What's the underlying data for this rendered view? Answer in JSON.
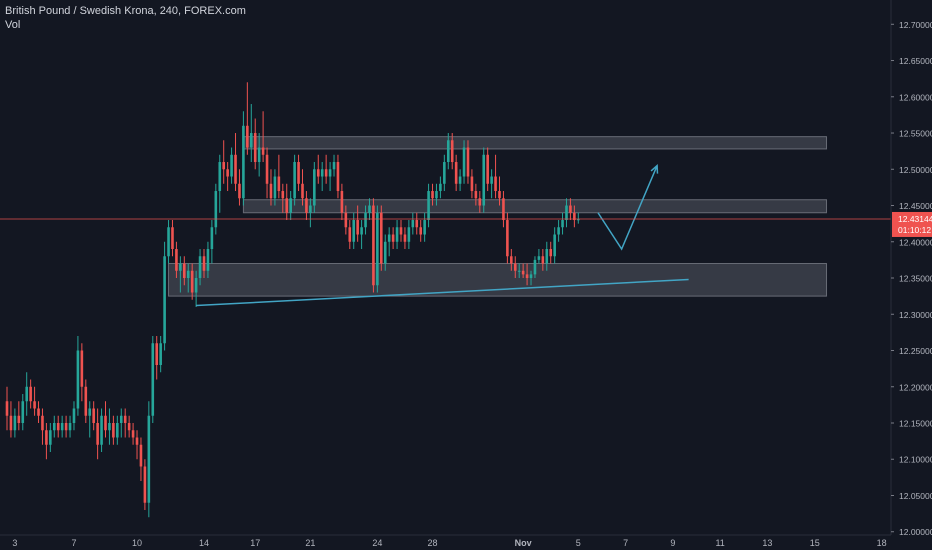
{
  "header": {
    "symbol_line": "British Pound / Swedish Krona, 240, FOREX.com",
    "volume_label": "Vol"
  },
  "price_badge": {
    "price": "12.43144",
    "countdown": "01:10:12"
  },
  "colors": {
    "background": "#131722",
    "up": "#26a69a",
    "down": "#ef5350",
    "grid": "#1e222d",
    "axis_text": "#b2b5be",
    "zone_fill": "#787b86",
    "trend_line": "#42a5c5",
    "price_line": "#ef5350"
  },
  "chart_data": {
    "type": "candlestick",
    "title": "British Pound / Swedish Krona, 240, FOREX.com",
    "xlabel": "",
    "ylabel": "",
    "ylim": [
      11.9955,
      12.7335
    ],
    "grid": false,
    "y_ticks": [
      "12.70000",
      "12.65000",
      "12.60000",
      "12.55000",
      "12.50000",
      "12.45000",
      "12.40000",
      "12.35000",
      "12.30000",
      "12.25000",
      "12.20000",
      "12.15000",
      "12.10000",
      "12.05000",
      "12.00000"
    ],
    "x_ticks": [
      {
        "label": "3",
        "bar": 2
      },
      {
        "label": "7",
        "bar": 17
      },
      {
        "label": "10",
        "bar": 33
      },
      {
        "label": "14",
        "bar": 50
      },
      {
        "label": "17",
        "bar": 63
      },
      {
        "label": "21",
        "bar": 77
      },
      {
        "label": "24",
        "bar": 94
      },
      {
        "label": "28",
        "bar": 108
      },
      {
        "label": "Nov",
        "bar": 131
      },
      {
        "label": "5",
        "bar": 145
      },
      {
        "label": "7",
        "bar": 157
      },
      {
        "label": "9",
        "bar": 169
      },
      {
        "label": "11",
        "bar": 181
      },
      {
        "label": "13",
        "bar": 193
      },
      {
        "label": "15",
        "bar": 205
      },
      {
        "label": "18",
        "bar": 222
      }
    ],
    "candles": [
      [
        12.18,
        12.2,
        12.14,
        12.16
      ],
      [
        12.16,
        12.18,
        12.13,
        12.14
      ],
      [
        12.14,
        12.17,
        12.13,
        12.16
      ],
      [
        12.16,
        12.18,
        12.14,
        12.15
      ],
      [
        12.15,
        12.19,
        12.14,
        12.18
      ],
      [
        12.18,
        12.22,
        12.16,
        12.2
      ],
      [
        12.2,
        12.21,
        12.17,
        12.18
      ],
      [
        12.18,
        12.2,
        12.16,
        12.17
      ],
      [
        12.17,
        12.18,
        12.15,
        12.16
      ],
      [
        12.16,
        12.17,
        12.12,
        12.14
      ],
      [
        12.14,
        12.15,
        12.1,
        12.12
      ],
      [
        12.12,
        12.15,
        12.11,
        12.14
      ],
      [
        12.14,
        12.16,
        12.13,
        12.15
      ],
      [
        12.15,
        12.16,
        12.13,
        12.14
      ],
      [
        12.14,
        12.16,
        12.13,
        12.15
      ],
      [
        12.15,
        12.16,
        12.13,
        12.14
      ],
      [
        12.14,
        12.16,
        12.13,
        12.15
      ],
      [
        12.15,
        12.18,
        12.14,
        12.17
      ],
      [
        12.17,
        12.27,
        12.16,
        12.25
      ],
      [
        12.25,
        12.26,
        12.18,
        12.2
      ],
      [
        12.2,
        12.21,
        12.15,
        12.16
      ],
      [
        12.16,
        12.18,
        12.13,
        12.17
      ],
      [
        12.17,
        12.18,
        12.14,
        12.15
      ],
      [
        12.15,
        12.17,
        12.1,
        12.12
      ],
      [
        12.12,
        12.17,
        12.11,
        12.16
      ],
      [
        12.16,
        12.18,
        12.13,
        12.14
      ],
      [
        12.14,
        12.17,
        12.12,
        12.15
      ],
      [
        12.15,
        12.16,
        12.12,
        12.13
      ],
      [
        12.13,
        12.16,
        12.12,
        12.15
      ],
      [
        12.15,
        12.17,
        12.13,
        12.16
      ],
      [
        12.16,
        12.17,
        12.13,
        12.15
      ],
      [
        12.15,
        12.16,
        12.13,
        12.14
      ],
      [
        12.14,
        12.15,
        12.12,
        12.13
      ],
      [
        12.13,
        12.14,
        12.1,
        12.12
      ],
      [
        12.12,
        12.13,
        12.07,
        12.09
      ],
      [
        12.09,
        12.1,
        12.03,
        12.04
      ],
      [
        12.04,
        12.18,
        12.02,
        12.16
      ],
      [
        12.16,
        12.27,
        12.15,
        12.26
      ],
      [
        12.26,
        12.27,
        12.21,
        12.23
      ],
      [
        12.23,
        12.27,
        12.22,
        12.26
      ],
      [
        12.26,
        12.4,
        12.25,
        12.38
      ],
      [
        12.38,
        12.43,
        12.37,
        12.42
      ],
      [
        12.42,
        12.43,
        12.38,
        12.39
      ],
      [
        12.39,
        12.4,
        12.35,
        12.36
      ],
      [
        12.36,
        12.38,
        12.33,
        12.37
      ],
      [
        12.37,
        12.38,
        12.34,
        12.35
      ],
      [
        12.35,
        12.37,
        12.33,
        12.36
      ],
      [
        12.36,
        12.37,
        12.32,
        12.33
      ],
      [
        12.33,
        12.36,
        12.31,
        12.35
      ],
      [
        12.35,
        12.39,
        12.34,
        12.38
      ],
      [
        12.38,
        12.39,
        12.35,
        12.36
      ],
      [
        12.36,
        12.4,
        12.35,
        12.39
      ],
      [
        12.39,
        12.43,
        12.37,
        12.42
      ],
      [
        12.42,
        12.48,
        12.41,
        12.47
      ],
      [
        12.47,
        12.52,
        12.44,
        12.51
      ],
      [
        12.51,
        12.54,
        12.48,
        12.5
      ],
      [
        12.5,
        12.51,
        12.47,
        12.49
      ],
      [
        12.49,
        12.53,
        12.48,
        12.52
      ],
      [
        12.52,
        12.55,
        12.47,
        12.48
      ],
      [
        12.48,
        12.5,
        12.45,
        12.46
      ],
      [
        12.46,
        12.58,
        12.45,
        12.56
      ],
      [
        12.56,
        12.62,
        12.52,
        12.53
      ],
      [
        12.53,
        12.59,
        12.51,
        12.55
      ],
      [
        12.55,
        12.57,
        12.5,
        12.51
      ],
      [
        12.51,
        12.55,
        12.49,
        12.53
      ],
      [
        12.53,
        12.58,
        12.51,
        12.52
      ],
      [
        12.52,
        12.53,
        12.46,
        12.48
      ],
      [
        12.48,
        12.5,
        12.45,
        12.46
      ],
      [
        12.46,
        12.5,
        12.45,
        12.49
      ],
      [
        12.49,
        12.52,
        12.46,
        12.47
      ],
      [
        12.47,
        12.48,
        12.44,
        12.46
      ],
      [
        12.46,
        12.48,
        12.43,
        12.44
      ],
      [
        12.44,
        12.47,
        12.43,
        12.46
      ],
      [
        12.46,
        12.52,
        12.45,
        12.51
      ],
      [
        12.51,
        12.52,
        12.47,
        12.48
      ],
      [
        12.48,
        12.5,
        12.45,
        12.46
      ],
      [
        12.46,
        12.47,
        12.43,
        12.44
      ],
      [
        12.44,
        12.46,
        12.42,
        12.45
      ],
      [
        12.45,
        12.51,
        12.44,
        12.5
      ],
      [
        12.5,
        12.52,
        12.48,
        12.49
      ],
      [
        12.49,
        12.51,
        12.47,
        12.5
      ],
      [
        12.5,
        12.52,
        12.48,
        12.49
      ],
      [
        12.49,
        12.51,
        12.47,
        12.5
      ],
      [
        12.5,
        12.52,
        12.49,
        12.51
      ],
      [
        12.51,
        12.52,
        12.46,
        12.47
      ],
      [
        12.47,
        12.48,
        12.43,
        12.44
      ],
      [
        12.44,
        12.45,
        12.41,
        12.42
      ],
      [
        12.42,
        12.43,
        12.39,
        12.4
      ],
      [
        12.4,
        12.44,
        12.39,
        12.43
      ],
      [
        12.43,
        12.45,
        12.4,
        12.41
      ],
      [
        12.41,
        12.43,
        12.39,
        12.42
      ],
      [
        12.42,
        12.45,
        12.41,
        12.44
      ],
      [
        12.44,
        12.46,
        12.43,
        12.45
      ],
      [
        12.45,
        12.46,
        12.33,
        12.34
      ],
      [
        12.34,
        12.45,
        12.33,
        12.44
      ],
      [
        12.44,
        12.45,
        12.36,
        12.37
      ],
      [
        12.37,
        12.41,
        12.36,
        12.4
      ],
      [
        12.4,
        12.42,
        12.38,
        12.41
      ],
      [
        12.41,
        12.42,
        12.39,
        12.4
      ],
      [
        12.4,
        12.43,
        12.39,
        12.42
      ],
      [
        12.42,
        12.43,
        12.4,
        12.41
      ],
      [
        12.41,
        12.42,
        12.39,
        12.4
      ],
      [
        12.4,
        12.43,
        12.39,
        12.42
      ],
      [
        12.42,
        12.44,
        12.41,
        12.43
      ],
      [
        12.43,
        12.44,
        12.41,
        12.42
      ],
      [
        12.42,
        12.43,
        12.4,
        12.41
      ],
      [
        12.41,
        12.44,
        12.4,
        12.43
      ],
      [
        12.43,
        12.48,
        12.42,
        12.47
      ],
      [
        12.47,
        12.48,
        12.45,
        12.46
      ],
      [
        12.46,
        12.48,
        12.45,
        12.47
      ],
      [
        12.47,
        12.49,
        12.46,
        12.48
      ],
      [
        12.48,
        12.52,
        12.47,
        12.51
      ],
      [
        12.51,
        12.55,
        12.5,
        12.54
      ],
      [
        12.54,
        12.55,
        12.5,
        12.51
      ],
      [
        12.51,
        12.52,
        12.47,
        12.48
      ],
      [
        12.48,
        12.5,
        12.47,
        12.49
      ],
      [
        12.49,
        12.54,
        12.48,
        12.53
      ],
      [
        12.53,
        12.54,
        12.48,
        12.49
      ],
      [
        12.49,
        12.5,
        12.46,
        12.47
      ],
      [
        12.47,
        12.48,
        12.45,
        12.46
      ],
      [
        12.46,
        12.47,
        12.44,
        12.45
      ],
      [
        12.45,
        12.53,
        12.44,
        12.52
      ],
      [
        12.52,
        12.53,
        12.47,
        12.48
      ],
      [
        12.48,
        12.5,
        12.46,
        12.49
      ],
      [
        12.49,
        12.52,
        12.46,
        12.47
      ],
      [
        12.47,
        12.49,
        12.45,
        12.46
      ],
      [
        12.46,
        12.47,
        12.42,
        12.43
      ],
      [
        12.43,
        12.44,
        12.37,
        12.38
      ],
      [
        12.38,
        12.39,
        12.36,
        12.37
      ],
      [
        12.37,
        12.38,
        12.35,
        12.36
      ],
      [
        12.36,
        12.37,
        12.35,
        12.36
      ],
      [
        12.36,
        12.37,
        12.35,
        12.355
      ],
      [
        12.355,
        12.37,
        12.34,
        12.35
      ],
      [
        12.35,
        12.36,
        12.34,
        12.355
      ],
      [
        12.355,
        12.38,
        12.35,
        12.375
      ],
      [
        12.375,
        12.39,
        12.37,
        12.38
      ],
      [
        12.38,
        12.39,
        12.36,
        12.37
      ],
      [
        12.37,
        12.4,
        12.36,
        12.39
      ],
      [
        12.39,
        12.4,
        12.37,
        12.38
      ],
      [
        12.38,
        12.42,
        12.37,
        12.41
      ],
      [
        12.41,
        12.43,
        12.4,
        12.42
      ],
      [
        12.42,
        12.44,
        12.41,
        12.43
      ],
      [
        12.43,
        12.46,
        12.42,
        12.45
      ],
      [
        12.45,
        12.46,
        12.43,
        12.44
      ],
      [
        12.44,
        12.45,
        12.42,
        12.43
      ],
      [
        12.43,
        12.44,
        12.425,
        12.431
      ]
    ],
    "zones": [
      {
        "top": 12.545,
        "bottom": 12.528,
        "start_bar": 60,
        "end_bar": 208
      },
      {
        "top": 12.458,
        "bottom": 12.44,
        "start_bar": 60,
        "end_bar": 208
      },
      {
        "top": 12.37,
        "bottom": 12.325,
        "start_bar": 41,
        "end_bar": 208
      }
    ],
    "trendline": [
      {
        "bar": 48,
        "price": 12.312
      },
      {
        "bar": 173,
        "price": 12.348
      }
    ],
    "projection": [
      {
        "bar": 150,
        "price": 12.44
      },
      {
        "bar": 156,
        "price": 12.39
      },
      {
        "bar": 165,
        "price": 12.505
      }
    ],
    "last_price": 12.43144
  }
}
